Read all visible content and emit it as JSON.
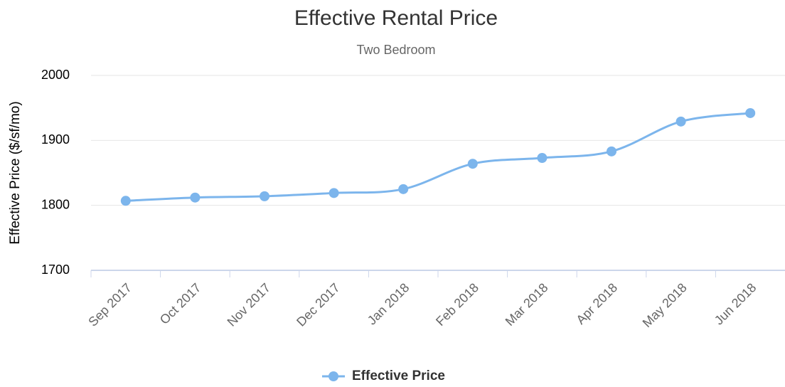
{
  "chart_data": {
    "type": "line",
    "title": "Effective Rental Price",
    "subtitle": "Two Bedroom",
    "y_label": "Effective Price ($/sf/mo)",
    "categories": [
      "Sep 2017",
      "Oct 2017",
      "Nov 2017",
      "Dec 2017",
      "Jan 2018",
      "Feb 2018",
      "Mar 2018",
      "Apr 2018",
      "May 2018",
      "Jun 2018"
    ],
    "series": [
      {
        "name": "Effective Price",
        "color": "#7cb5ec",
        "values": [
          1807,
          1812,
          1814,
          1819,
          1825,
          1864,
          1873,
          1883,
          1929,
          1942
        ]
      }
    ],
    "ylim": [
      1700,
      2000
    ],
    "yticks": [
      1700,
      1800,
      1900,
      2000
    ],
    "grid": true,
    "legend": "bottom"
  }
}
